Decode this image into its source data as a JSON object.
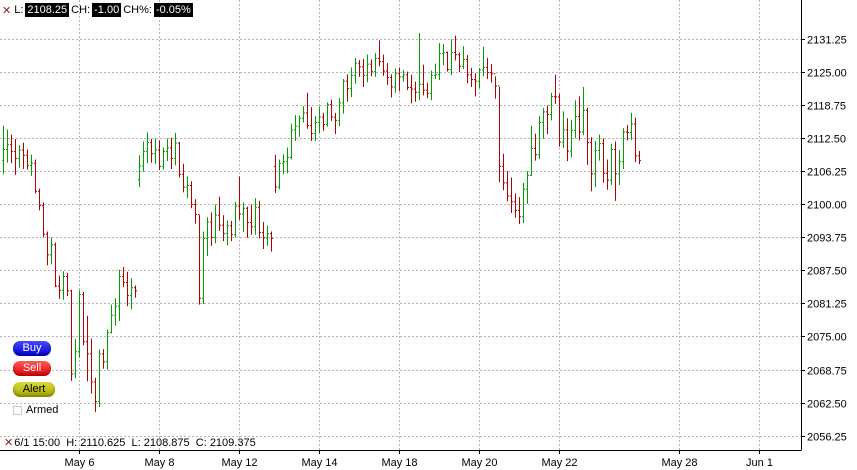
{
  "header": {
    "l_label": "L:",
    "l_value": "2108.25",
    "ch_label": "CH:",
    "ch_value": "-1.00",
    "chp_label": "CH%:",
    "chp_value": "-0.05%"
  },
  "buttons": {
    "buy": "Buy",
    "sell": "Sell",
    "alert": "Alert",
    "armed": "Armed"
  },
  "footer": {
    "time": "6/1 15:00",
    "h_label": "H:",
    "h_value": "2110.625",
    "l_label": "L:",
    "l_value": "2108.875",
    "c_label": "C:",
    "c_value": "2109.375"
  },
  "colors": {
    "up": "#00a000",
    "down": "#b00000",
    "grid": "#b4b4b4",
    "marker": "#8b1a1a"
  },
  "chart_data": {
    "type": "bar",
    "style": "ohlc",
    "ylim": [
      2053,
      2136
    ],
    "y_ticks": [
      "2131.25",
      "2125.00",
      "2118.75",
      "2112.50",
      "2106.25",
      "2100.00",
      "2093.75",
      "2087.50",
      "2081.25",
      "2075.00",
      "2068.75",
      "2062.50",
      "2056.25"
    ],
    "x_ticks": [
      "May 6",
      "May 8",
      "May 12",
      "May 14",
      "May 18",
      "May 20",
      "May 22",
      "May 28",
      "Jun 1"
    ],
    "x_tick_index": [
      19,
      39,
      59,
      79,
      99,
      119,
      139,
      169,
      189
    ],
    "grid": true,
    "series": [
      {
        "points": [
          [
            2108.25,
            2114.8,
            2105.6,
            2110.3
          ],
          [
            2110.3,
            2114.1,
            2107.8,
            2111.2
          ],
          [
            2111.2,
            2113.1,
            2107.7,
            2109.9
          ],
          [
            2109.9,
            2112.3,
            2105.5,
            2108.6
          ],
          [
            2108.6,
            2111.1,
            2106.9,
            2110.2
          ],
          [
            2110.2,
            2111.6,
            2106.6,
            2109.2
          ],
          [
            2109.2,
            2110.3,
            2106.5,
            2107.3
          ],
          [
            2107.3,
            2109.3,
            2105.3,
            2107.7
          ],
          [
            2107.7,
            2108.4,
            2102.0,
            2102.4
          ],
          [
            2102.4,
            2102.9,
            2098.8,
            2099.7
          ],
          [
            2099.7,
            2100.3,
            2093.7,
            2094.3
          ],
          [
            2094.3,
            2094.8,
            2088.4,
            2090.4
          ],
          [
            2090.4,
            2093.7,
            2088.6,
            2092.3
          ],
          [
            2092.3,
            2092.7,
            2084.3,
            2084.5
          ],
          [
            2084.5,
            2086.5,
            2082.1,
            2083.7
          ],
          [
            2083.7,
            2087.3,
            2081.9,
            2086.3
          ],
          [
            2086.3,
            2087.0,
            2082.6,
            2083.6
          ],
          [
            2083.6,
            2083.8,
            2066.6,
            2067.9
          ],
          [
            2067.9,
            2074.5,
            2067.1,
            2072.1
          ],
          [
            2072.1,
            2083.7,
            2071.0,
            2082.9
          ],
          [
            2082.9,
            2083.4,
            2073.3,
            2074.0
          ],
          [
            2074.0,
            2078.9,
            2066.5,
            2071.7
          ],
          [
            2071.7,
            2074.6,
            2064.2,
            2066.4
          ],
          [
            2066.4,
            2067.2,
            2060.7,
            2062.7
          ],
          [
            2062.7,
            2072.5,
            2061.7,
            2071.7
          ],
          [
            2071.7,
            2072.6,
            2068.9,
            2070.2
          ],
          [
            2070.2,
            2076.3,
            2068.7,
            2075.7
          ],
          [
            2075.7,
            2081.0,
            2075.6,
            2079.0
          ],
          [
            2079.0,
            2082.2,
            2077.0,
            2080.7
          ],
          [
            2080.7,
            2087.6,
            2077.9,
            2086.3
          ],
          [
            2086.3,
            2088.1,
            2084.3,
            2085.2
          ],
          [
            2085.2,
            2087.2,
            2080.7,
            2082.7
          ],
          [
            2082.7,
            2086.0,
            2080.1,
            2084.2
          ],
          [
            2084.2,
            2084.6,
            2082.3,
            2083.6
          ],
          [
            2104.6,
            2109.2,
            2103.2,
            2107.2
          ],
          [
            2107.2,
            2111.8,
            2106.1,
            2109.9
          ],
          [
            2109.9,
            2113.5,
            2107.7,
            2111.6
          ],
          [
            2111.6,
            2112.3,
            2107.8,
            2109.5
          ],
          [
            2109.5,
            2112.4,
            2107.6,
            2110.2
          ],
          [
            2110.2,
            2112.0,
            2106.4,
            2107.1
          ],
          [
            2107.1,
            2110.7,
            2106.5,
            2109.9
          ],
          [
            2109.9,
            2112.4,
            2108.1,
            2110.6
          ],
          [
            2110.6,
            2112.5,
            2106.6,
            2108.6
          ],
          [
            2108.6,
            2113.4,
            2107.3,
            2111.5
          ],
          [
            2111.5,
            2111.7,
            2105.0,
            2105.6
          ],
          [
            2105.6,
            2107.6,
            2102.2,
            2103.2
          ],
          [
            2103.2,
            2105.2,
            2101.1,
            2103.5
          ],
          [
            2103.5,
            2104.3,
            2099.2,
            2099.9
          ],
          [
            2099.9,
            2100.9,
            2096.3,
            2098.0
          ],
          [
            2098.0,
            2097.9,
            2081.0,
            2082.2
          ],
          [
            2082.2,
            2094.8,
            2081.1,
            2093.5
          ],
          [
            2093.5,
            2097.5,
            2090.2,
            2096.6
          ],
          [
            2096.6,
            2098.4,
            2092.1,
            2093.7
          ],
          [
            2093.7,
            2099.9,
            2092.6,
            2097.9
          ],
          [
            2097.9,
            2101.4,
            2094.9,
            2096.0
          ],
          [
            2096.0,
            2097.9,
            2093.0,
            2094.4
          ],
          [
            2094.4,
            2096.9,
            2092.2,
            2095.9
          ],
          [
            2095.9,
            2096.8,
            2093.0,
            2094.2
          ],
          [
            2094.2,
            2100.4,
            2093.7,
            2099.6
          ],
          [
            2099.6,
            2105.2,
            2097.0,
            2098.1
          ],
          [
            2098.1,
            2100.3,
            2094.7,
            2099.2
          ],
          [
            2099.2,
            2099.5,
            2093.6,
            2096.5
          ],
          [
            2096.5,
            2099.9,
            2094.2,
            2095.7
          ],
          [
            2095.7,
            2101.1,
            2094.2,
            2099.4
          ],
          [
            2099.4,
            2100.6,
            2093.5,
            2094.6
          ],
          [
            2094.6,
            2096.6,
            2091.5,
            2093.6
          ],
          [
            2093.6,
            2095.9,
            2092.1,
            2094.4
          ],
          [
            2094.4,
            2094.8,
            2091.0,
            2093.5
          ],
          [
            2107.1,
            2109.3,
            2102.1,
            2103.2
          ],
          [
            2103.2,
            2108.4,
            2102.8,
            2107.7
          ],
          [
            2107.7,
            2109.4,
            2105.6,
            2108.0
          ],
          [
            2108.0,
            2110.7,
            2105.8,
            2108.8
          ],
          [
            2108.8,
            2115.2,
            2108.4,
            2114.0
          ],
          [
            2114.0,
            2116.8,
            2111.9,
            2114.7
          ],
          [
            2114.7,
            2116.7,
            2112.7,
            2116.2
          ],
          [
            2116.2,
            2118.5,
            2115.4,
            2117.2
          ],
          [
            2117.2,
            2121.0,
            2114.2,
            2114.8
          ],
          [
            2114.8,
            2118.3,
            2111.9,
            2113.3
          ],
          [
            2113.3,
            2116.6,
            2111.9,
            2115.4
          ],
          [
            2115.4,
            2118.4,
            2113.4,
            2116.4
          ],
          [
            2116.4,
            2117.2,
            2113.8,
            2115.0
          ],
          [
            2115.0,
            2119.2,
            2114.6,
            2118.8
          ],
          [
            2118.8,
            2119.7,
            2115.7,
            2116.4
          ],
          [
            2116.4,
            2117.2,
            2113.2,
            2115.8
          ],
          [
            2115.8,
            2120.0,
            2114.7,
            2119.1
          ],
          [
            2119.1,
            2123.6,
            2117.1,
            2123.2
          ],
          [
            2123.2,
            2124.5,
            2119.3,
            2121.8
          ],
          [
            2121.8,
            2125.8,
            2120.2,
            2124.3
          ],
          [
            2124.3,
            2127.6,
            2122.7,
            2126.6
          ],
          [
            2126.6,
            2127.2,
            2124.0,
            2125.9
          ],
          [
            2125.9,
            2127.4,
            2122.1,
            2124.3
          ],
          [
            2124.3,
            2128.2,
            2123.0,
            2126.4
          ],
          [
            2126.4,
            2127.3,
            2124.1,
            2125.0
          ],
          [
            2125.0,
            2128.5,
            2124.0,
            2127.5
          ],
          [
            2127.5,
            2130.9,
            2126.0,
            2126.9
          ],
          [
            2126.9,
            2128.2,
            2124.2,
            2125.1
          ],
          [
            2125.1,
            2126.6,
            2122.5,
            2123.9
          ],
          [
            2123.9,
            2124.5,
            2120.1,
            2122.1
          ],
          [
            2122.1,
            2125.6,
            2121.0,
            2124.6
          ],
          [
            2124.6,
            2125.8,
            2121.3,
            2124.0
          ],
          [
            2124.0,
            2125.3,
            2123.1,
            2124.4
          ],
          [
            2124.4,
            2125.0,
            2121.5,
            2122.0
          ],
          [
            2122.0,
            2124.4,
            2119.0,
            2121.7
          ],
          [
            2121.7,
            2123.1,
            2119.3,
            2121.1
          ],
          [
            2121.1,
            2132.3,
            2119.6,
            2122.6
          ],
          [
            2122.6,
            2126.3,
            2120.5,
            2121.5
          ],
          [
            2121.5,
            2122.9,
            2120.0,
            2120.9
          ],
          [
            2120.9,
            2125.2,
            2119.6,
            2124.3
          ],
          [
            2124.3,
            2126.5,
            2123.6,
            2124.4
          ],
          [
            2124.4,
            2130.4,
            2123.4,
            2128.4
          ],
          [
            2128.4,
            2130.2,
            2126.2,
            2128.6
          ],
          [
            2128.6,
            2128.8,
            2125.0,
            2125.4
          ],
          [
            2125.4,
            2131.1,
            2124.3,
            2128.6
          ],
          [
            2128.6,
            2131.8,
            2127.1,
            2128.2
          ],
          [
            2128.2,
            2128.6,
            2124.9,
            2126.0
          ],
          [
            2126.0,
            2129.8,
            2125.5,
            2127.3
          ],
          [
            2127.3,
            2128.1,
            2122.8,
            2124.4
          ],
          [
            2124.4,
            2125.7,
            2122.1,
            2123.5
          ],
          [
            2123.5,
            2124.7,
            2120.3,
            2123.2
          ],
          [
            2123.2,
            2125.7,
            2121.9,
            2125.3
          ],
          [
            2125.3,
            2129.7,
            2124.1,
            2125.8
          ],
          [
            2125.8,
            2127.6,
            2123.6,
            2124.8
          ],
          [
            2124.8,
            2126.4,
            2122.9,
            2124.6
          ],
          [
            2124.6,
            2124.1,
            2119.9,
            2122.3
          ],
          [
            2122.3,
            2122.1,
            2104.1,
            2107.1
          ],
          [
            2107.1,
            2109.5,
            2102.6,
            2104.0
          ],
          [
            2104.0,
            2106.2,
            2100.5,
            2101.5
          ],
          [
            2101.5,
            2105.0,
            2098.3,
            2100.4
          ],
          [
            2100.4,
            2102.0,
            2097.4,
            2098.8
          ],
          [
            2098.8,
            2101.3,
            2096.2,
            2097.6
          ],
          [
            2097.6,
            2104.0,
            2096.4,
            2102.8
          ],
          [
            2102.8,
            2106.2,
            2100.0,
            2105.4
          ],
          [
            2105.4,
            2114.8,
            2105.3,
            2110.5
          ],
          [
            2110.5,
            2113.3,
            2108.2,
            2109.3
          ],
          [
            2109.3,
            2116.6,
            2108.5,
            2115.4
          ],
          [
            2115.4,
            2118.1,
            2112.3,
            2117.4
          ],
          [
            2117.4,
            2118.6,
            2113.2,
            2116.9
          ],
          [
            2116.9,
            2121.0,
            2115.8,
            2120.3
          ],
          [
            2120.3,
            2124.4,
            2118.9,
            2120.2
          ],
          [
            2120.2,
            2120.8,
            2110.8,
            2111.7
          ],
          [
            2111.7,
            2117.5,
            2110.6,
            2114.0
          ],
          [
            2114.0,
            2116.2,
            2108.1,
            2110.0
          ],
          [
            2110.0,
            2115.9,
            2108.8,
            2113.9
          ],
          [
            2113.9,
            2119.6,
            2112.4,
            2116.5
          ],
          [
            2116.5,
            2120.3,
            2112.0,
            2113.6
          ],
          [
            2113.6,
            2122.1,
            2113.0,
            2117.7
          ],
          [
            2117.7,
            2118.2,
            2107.4,
            2111.6
          ],
          [
            2111.6,
            2112.6,
            2102.4,
            2105.7
          ],
          [
            2105.7,
            2111.9,
            2103.2,
            2110.1
          ],
          [
            2110.1,
            2113.1,
            2108.2,
            2111.4
          ],
          [
            2111.4,
            2112.4,
            2104.0,
            2105.8
          ],
          [
            2105.8,
            2108.4,
            2102.7,
            2104.5
          ],
          [
            2104.5,
            2111.4,
            2103.6,
            2110.3
          ],
          [
            2110.3,
            2111.8,
            2100.6,
            2105.7
          ],
          [
            2105.7,
            2110.2,
            2103.6,
            2108.0
          ],
          [
            2108.0,
            2114.3,
            2106.6,
            2113.6
          ],
          [
            2113.6,
            2114.9,
            2112.0,
            2113.5
          ],
          [
            2113.5,
            2117.2,
            2112.1,
            2115.1
          ],
          [
            2115.1,
            2116.3,
            2107.9,
            2109.1
          ],
          [
            2109.1,
            2110.0,
            2107.5,
            2108.2
          ]
        ]
      }
    ]
  }
}
